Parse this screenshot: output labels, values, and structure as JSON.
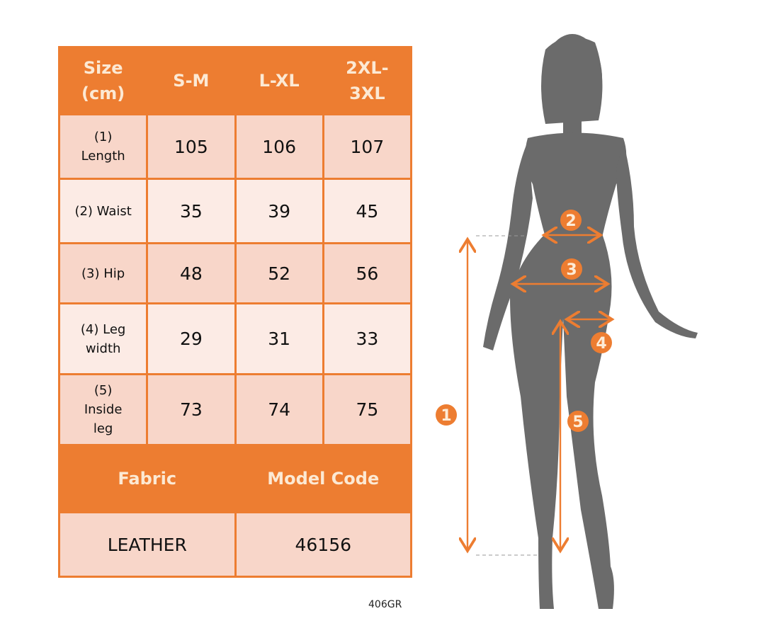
{
  "header": {
    "size": "Size (cm)",
    "columns": [
      "S-M",
      "L-XL",
      "2XL-3XL"
    ]
  },
  "rows": [
    {
      "label": "(1) Length",
      "values": [
        "105",
        "106",
        "107"
      ]
    },
    {
      "label": "(2) Waist",
      "values": [
        "35",
        "39",
        "45"
      ]
    },
    {
      "label": "(3) Hip",
      "values": [
        "48",
        "52",
        "56"
      ]
    },
    {
      "label": "(4) Leg width",
      "values": [
        "29",
        "31",
        "33"
      ]
    },
    {
      "label": "(5) Inside leg",
      "values": [
        "73",
        "74",
        "75"
      ]
    }
  ],
  "footer": {
    "fabric_label": "Fabric",
    "model_code_label": "Model Code",
    "fabric": "LEATHER",
    "model_code": "46156"
  },
  "product_code": "406GR",
  "markers": [
    "1",
    "2",
    "3",
    "4",
    "5"
  ],
  "colors": {
    "accent": "#ED7D31",
    "header_text": "#FCE9D4",
    "cell_dark": "#F8D6C9",
    "cell_light": "#FCEBE5",
    "silhouette": "#6B6B6B"
  }
}
